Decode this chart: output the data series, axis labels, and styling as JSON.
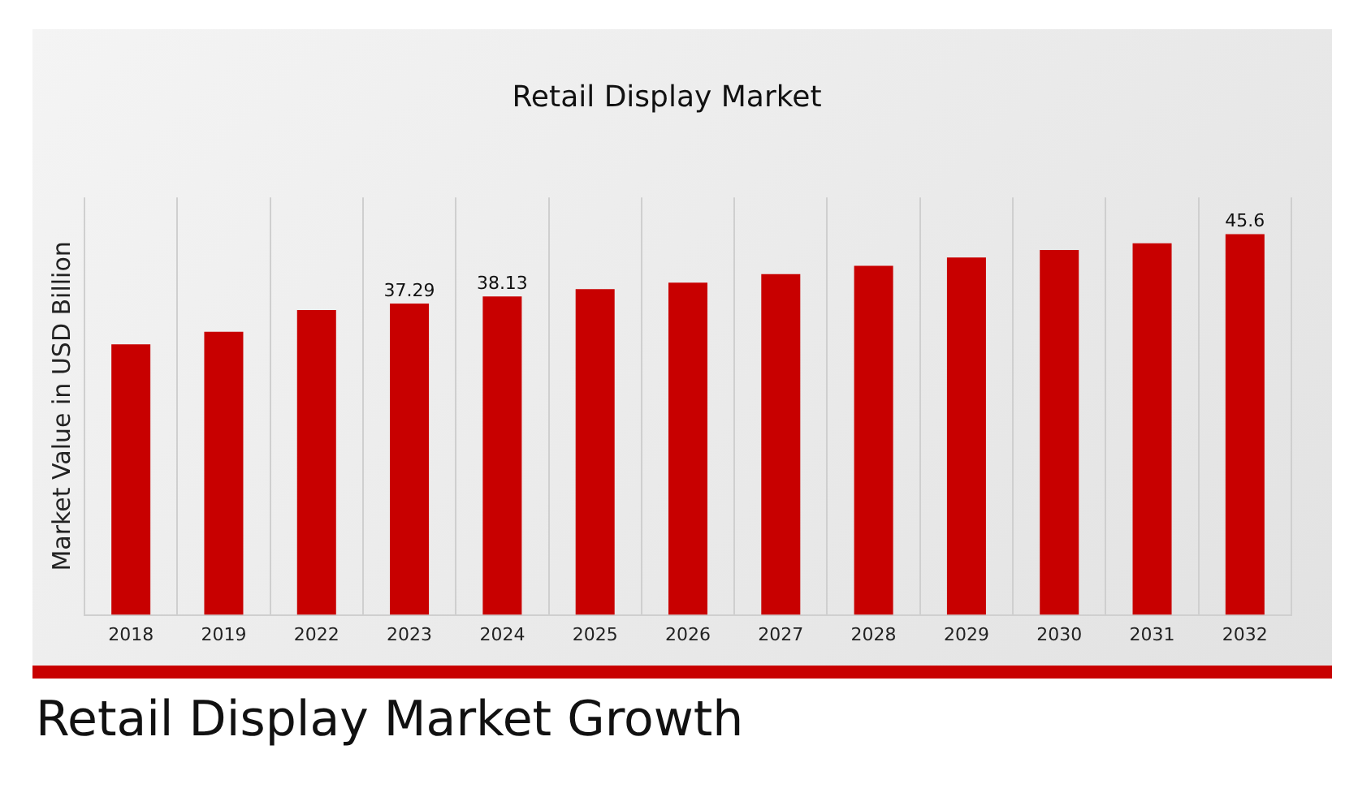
{
  "chart_data": {
    "type": "bar",
    "title": "Retail Display Market",
    "ylabel": "Market Value in USD Billion",
    "categories": [
      "2018",
      "2019",
      "2022",
      "2023",
      "2024",
      "2025",
      "2026",
      "2027",
      "2028",
      "2029",
      "2030",
      "2031",
      "2032"
    ],
    "values": [
      32.4,
      33.9,
      36.5,
      37.29,
      38.13,
      39.0,
      39.8,
      40.8,
      41.8,
      42.8,
      43.7,
      44.5,
      45.6
    ],
    "value_labels": [
      null,
      null,
      null,
      "37.29",
      "38.13",
      null,
      null,
      null,
      null,
      null,
      null,
      null,
      "45.6"
    ],
    "color": "#c80000",
    "ylim": [
      0,
      50
    ],
    "grid": "x",
    "tick_labels": "x",
    "legend": false,
    "annotations": [
      "Retail Display Market Growth"
    ]
  }
}
